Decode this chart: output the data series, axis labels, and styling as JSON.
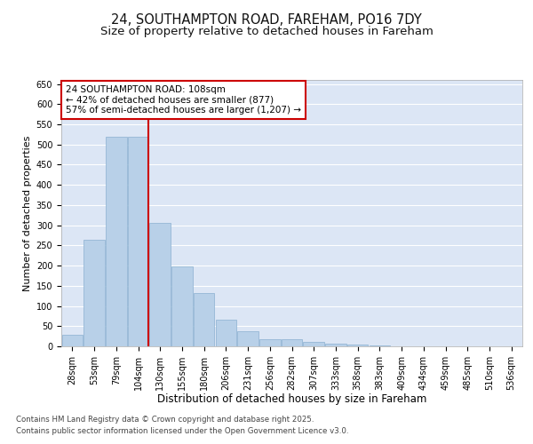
{
  "title_line1": "24, SOUTHAMPTON ROAD, FAREHAM, PO16 7DY",
  "title_line2": "Size of property relative to detached houses in Fareham",
  "xlabel": "Distribution of detached houses by size in Fareham",
  "ylabel": "Number of detached properties",
  "categories": [
    "28sqm",
    "53sqm",
    "79sqm",
    "104sqm",
    "130sqm",
    "155sqm",
    "180sqm",
    "206sqm",
    "231sqm",
    "256sqm",
    "282sqm",
    "307sqm",
    "333sqm",
    "358sqm",
    "383sqm",
    "409sqm",
    "434sqm",
    "459sqm",
    "485sqm",
    "510sqm",
    "536sqm"
  ],
  "values": [
    28,
    265,
    520,
    520,
    305,
    198,
    133,
    65,
    38,
    17,
    17,
    12,
    7,
    5,
    3,
    1,
    1,
    1,
    1,
    1,
    1
  ],
  "bar_color": "#b8d0e8",
  "bar_edge_color": "#8ab0d0",
  "vline_color": "#cc0000",
  "vline_index": 3,
  "annotation_text": "24 SOUTHAMPTON ROAD: 108sqm\n← 42% of detached houses are smaller (877)\n57% of semi-detached houses are larger (1,207) →",
  "annotation_box_facecolor": "#ffffff",
  "annotation_box_edgecolor": "#cc0000",
  "ylim": [
    0,
    660
  ],
  "yticks": [
    0,
    50,
    100,
    150,
    200,
    250,
    300,
    350,
    400,
    450,
    500,
    550,
    600,
    650
  ],
  "ax_facecolor": "#dce6f5",
  "grid_color": "#ffffff",
  "footer_line1": "Contains HM Land Registry data © Crown copyright and database right 2025.",
  "footer_line2": "Contains public sector information licensed under the Open Government Licence v3.0.",
  "title_fontsize": 10.5,
  "subtitle_fontsize": 9.5,
  "tick_fontsize": 7,
  "xlabel_fontsize": 8.5,
  "ylabel_fontsize": 8,
  "annot_fontsize": 7.5,
  "footer_fontsize": 6.2
}
